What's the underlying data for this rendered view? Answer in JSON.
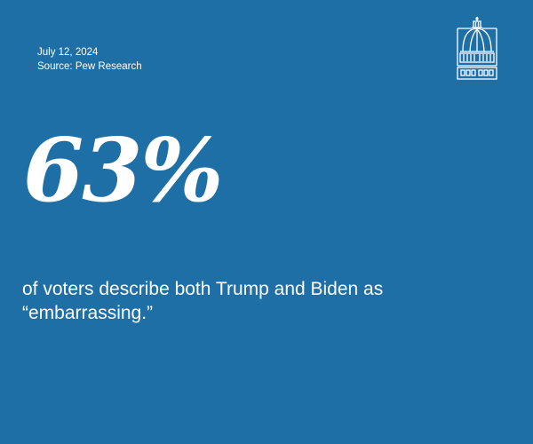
{
  "header": {
    "date": "July 12, 2024",
    "source": "Source: Pew Research"
  },
  "logo": {
    "icon": "capitol-dome-icon"
  },
  "stat": {
    "value": "63%"
  },
  "caption": {
    "line1": "of voters describe both Trump and Biden as",
    "line2": "“embarrassing.”"
  },
  "colors": {
    "background": "#1e6fa6",
    "text": "#ffffff"
  }
}
